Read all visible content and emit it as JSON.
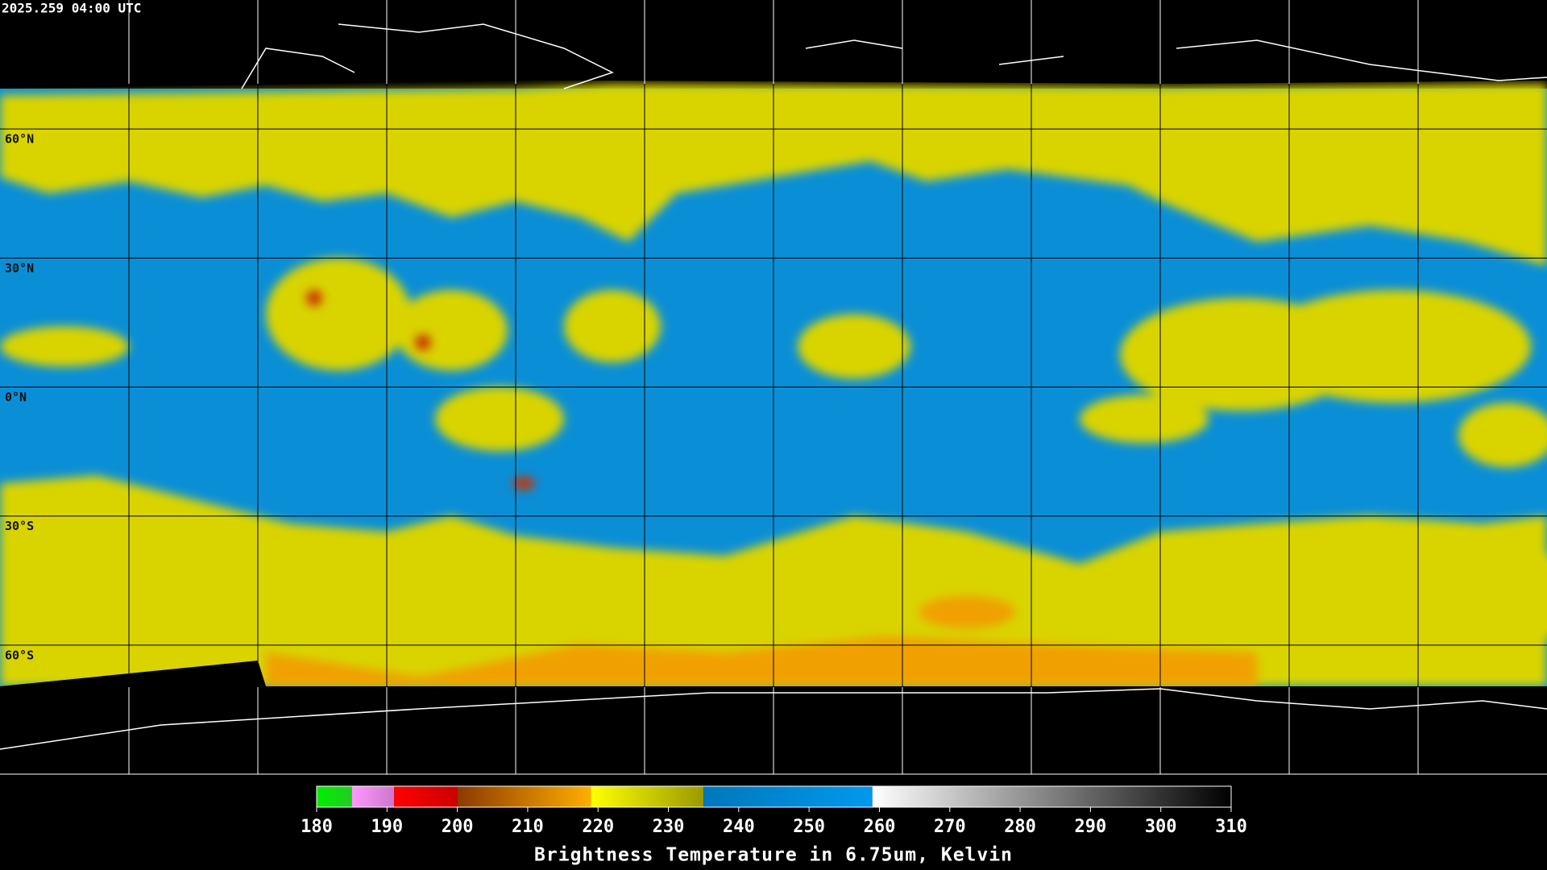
{
  "header": {
    "timestamp": "2025.259 04:00 UTC"
  },
  "map": {
    "lat_labels": [
      "60°N",
      "30°N",
      "0°N",
      "30°S",
      "60°S"
    ]
  },
  "colorbar": {
    "title": "Brightness Temperature in 6.75um, Kelvin",
    "range": [
      180,
      310
    ],
    "ticks": [
      180,
      190,
      200,
      210,
      220,
      230,
      240,
      250,
      260,
      270,
      280,
      290,
      300,
      310
    ],
    "segments": [
      {
        "from": 180,
        "to": 185,
        "colors": [
          "#00ee00",
          "#22cc22"
        ]
      },
      {
        "from": 185,
        "to": 191,
        "colors": [
          "#ff99ff",
          "#cc77cc"
        ]
      },
      {
        "from": 191,
        "to": 200,
        "colors": [
          "#ff0000",
          "#cc0000"
        ]
      },
      {
        "from": 200,
        "to": 219,
        "colors": [
          "#8a3a00",
          "#ffae00"
        ]
      },
      {
        "from": 219,
        "to": 235,
        "colors": [
          "#ffff00",
          "#9a9a00"
        ]
      },
      {
        "from": 235,
        "to": 259,
        "colors": [
          "#0077bb",
          "#0099ee"
        ]
      },
      {
        "from": 259,
        "to": 310,
        "colors": [
          "#ffffff",
          "#000000"
        ]
      }
    ]
  }
}
